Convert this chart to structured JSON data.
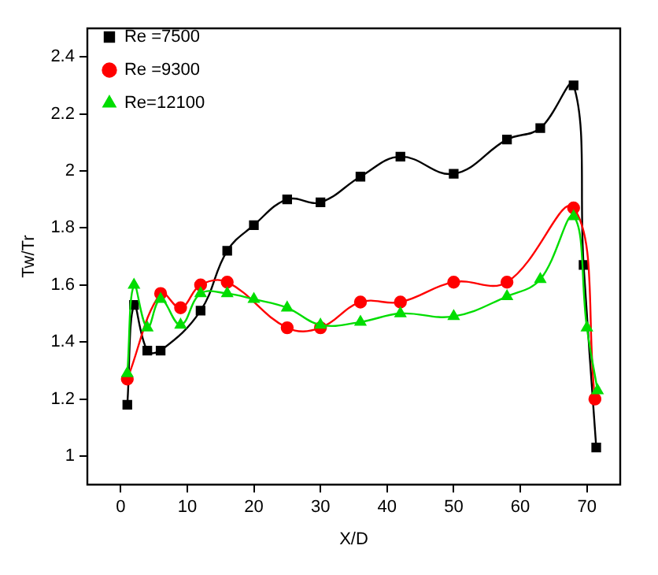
{
  "chart_data": {
    "type": "line",
    "xlabel": "X/D",
    "ylabel": "Tw/Tr",
    "xlim": [
      -5,
      75
    ],
    "xticks": [
      0,
      10,
      20,
      30,
      40,
      50,
      60,
      70
    ],
    "ylim": [
      0.9,
      2.5
    ],
    "yticks": [
      1.0,
      1.2,
      1.4,
      1.6,
      1.8,
      2.0,
      2.2,
      2.4
    ],
    "grid": false,
    "legend": "top left",
    "series": [
      {
        "name": "Re =7500",
        "color": "#000000",
        "marker": "square",
        "x": [
          1,
          2,
          4,
          6,
          12,
          16,
          20,
          25,
          30,
          36,
          42,
          50,
          58,
          63,
          68,
          69.5,
          71.4
        ],
        "values": [
          1.18,
          1.53,
          1.37,
          1.37,
          1.51,
          1.72,
          1.81,
          1.9,
          1.89,
          1.98,
          2.05,
          1.99,
          2.11,
          2.15,
          2.3,
          1.67,
          1.03
        ]
      },
      {
        "name": "Re =9300",
        "color": "#ff0000",
        "marker": "circle",
        "x": [
          1,
          6,
          9,
          12,
          16,
          25,
          30,
          36,
          42,
          50,
          58,
          68,
          71.2
        ],
        "values": [
          1.27,
          1.57,
          1.52,
          1.6,
          1.61,
          1.45,
          1.45,
          1.54,
          1.54,
          1.61,
          1.61,
          1.87,
          1.2
        ]
      },
      {
        "name": "Re=12100",
        "color": "#00dd00",
        "marker": "triangle",
        "x": [
          1,
          2,
          4,
          6,
          9,
          12,
          16,
          20,
          25,
          30,
          36,
          42,
          50,
          58,
          63,
          68,
          70,
          71.6
        ],
        "values": [
          1.29,
          1.6,
          1.45,
          1.55,
          1.46,
          1.57,
          1.57,
          1.55,
          1.52,
          1.46,
          1.47,
          1.5,
          1.49,
          1.56,
          1.62,
          1.84,
          1.45,
          1.23
        ]
      }
    ]
  }
}
